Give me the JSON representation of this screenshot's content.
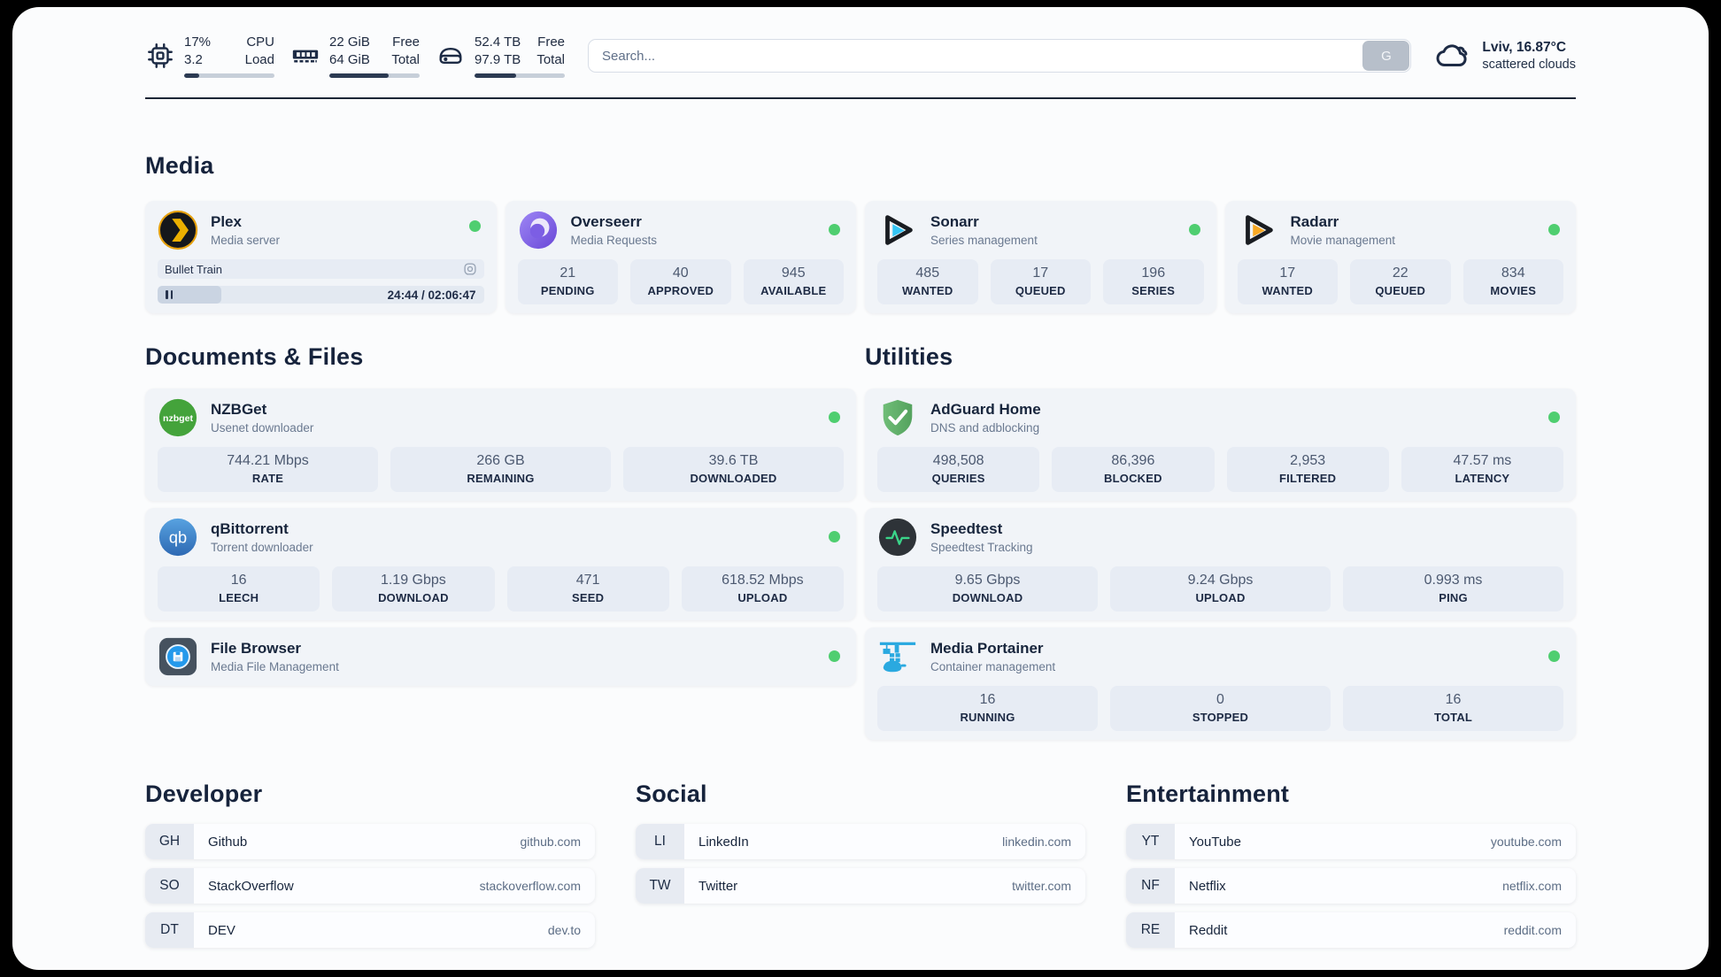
{
  "header": {
    "system": [
      {
        "name": "cpu",
        "value_top": "17%",
        "value_bottom": "3.2",
        "label_top": "CPU",
        "label_bottom": "Load",
        "progress_pct": 17
      },
      {
        "name": "memory",
        "value_top": "22 GiB",
        "value_bottom": "64 GiB",
        "label_top": "Free",
        "label_bottom": "Total",
        "progress_pct": 66
      },
      {
        "name": "disk",
        "value_top": "52.4 TB",
        "value_bottom": "97.9 TB",
        "label_top": "Free",
        "label_bottom": "Total",
        "progress_pct": 46
      }
    ],
    "search": {
      "placeholder": "Search...",
      "button_label": "G"
    },
    "weather": {
      "location_temp": "Lviv, 16.87°C",
      "condition": "scattered clouds"
    }
  },
  "sections": {
    "media": "Media",
    "documents": "Documents & Files",
    "utilities": "Utilities",
    "developer": "Developer",
    "social": "Social",
    "entertainment": "Entertainment"
  },
  "media": {
    "plex": {
      "name": "Plex",
      "description": "Media server",
      "status": "online",
      "now_playing": "Bullet Train",
      "time": "24:44 / 02:06:47",
      "progress_pct": 19.5
    },
    "overseerr": {
      "name": "Overseerr",
      "description": "Media Requests",
      "status": "online",
      "stats": [
        {
          "value": "21",
          "label": "PENDING"
        },
        {
          "value": "40",
          "label": "APPROVED"
        },
        {
          "value": "945",
          "label": "AVAILABLE"
        }
      ]
    },
    "sonarr": {
      "name": "Sonarr",
      "description": "Series management",
      "status": "online",
      "stats": [
        {
          "value": "485",
          "label": "WANTED"
        },
        {
          "value": "17",
          "label": "QUEUED"
        },
        {
          "value": "196",
          "label": "SERIES"
        }
      ]
    },
    "radarr": {
      "name": "Radarr",
      "description": "Movie management",
      "status": "online",
      "stats": [
        {
          "value": "17",
          "label": "WANTED"
        },
        {
          "value": "22",
          "label": "QUEUED"
        },
        {
          "value": "834",
          "label": "MOVIES"
        }
      ]
    }
  },
  "documents": {
    "nzbget": {
      "name": "NZBGet",
      "description": "Usenet downloader",
      "status": "online",
      "stats": [
        {
          "value": "744.21 Mbps",
          "label": "RATE"
        },
        {
          "value": "266 GB",
          "label": "REMAINING"
        },
        {
          "value": "39.6 TB",
          "label": "DOWNLOADED"
        }
      ]
    },
    "qbittorrent": {
      "name": "qBittorrent",
      "description": "Torrent downloader",
      "status": "online",
      "stats": [
        {
          "value": "16",
          "label": "LEECH"
        },
        {
          "value": "1.19 Gbps",
          "label": "DOWNLOAD"
        },
        {
          "value": "471",
          "label": "SEED"
        },
        {
          "value": "618.52 Mbps",
          "label": "UPLOAD"
        }
      ]
    },
    "filebrowser": {
      "name": "File Browser",
      "description": "Media File Management",
      "status": "online"
    }
  },
  "utilities": {
    "adguard": {
      "name": "AdGuard Home",
      "description": "DNS and adblocking",
      "status": "online",
      "stats": [
        {
          "value": "498,508",
          "label": "QUERIES"
        },
        {
          "value": "86,396",
          "label": "BLOCKED"
        },
        {
          "value": "2,953",
          "label": "FILTERED"
        },
        {
          "value": "47.57 ms",
          "label": "LATENCY"
        }
      ]
    },
    "speedtest": {
      "name": "Speedtest",
      "description": "Speedtest Tracking",
      "stats": [
        {
          "value": "9.65 Gbps",
          "label": "DOWNLOAD"
        },
        {
          "value": "9.24 Gbps",
          "label": "UPLOAD"
        },
        {
          "value": "0.993 ms",
          "label": "PING"
        }
      ]
    },
    "portainer": {
      "name": "Media Portainer",
      "description": "Container management",
      "status": "online",
      "stats": [
        {
          "value": "16",
          "label": "RUNNING"
        },
        {
          "value": "0",
          "label": "STOPPED"
        },
        {
          "value": "16",
          "label": "TOTAL"
        }
      ]
    }
  },
  "bookmarks": {
    "developer": [
      {
        "abbr": "GH",
        "name": "Github",
        "url": "github.com"
      },
      {
        "abbr": "SO",
        "name": "StackOverflow",
        "url": "stackoverflow.com"
      },
      {
        "abbr": "DT",
        "name": "DEV",
        "url": "dev.to"
      }
    ],
    "social": [
      {
        "abbr": "LI",
        "name": "LinkedIn",
        "url": "linkedin.com"
      },
      {
        "abbr": "TW",
        "name": "Twitter",
        "url": "twitter.com"
      }
    ],
    "entertainment": [
      {
        "abbr": "YT",
        "name": "YouTube",
        "url": "youtube.com"
      },
      {
        "abbr": "NF",
        "name": "Netflix",
        "url": "netflix.com"
      },
      {
        "abbr": "RE",
        "name": "Reddit",
        "url": "reddit.com"
      }
    ]
  },
  "colors": {
    "status_online": "#4fce70",
    "plex_accent": "#e5a00d",
    "sonarr_accent": "#35c5f4",
    "radarr_accent": "#f7a823",
    "portainer_accent": "#2aa9e0",
    "adguard_accent": "#5fae66",
    "divider": "#1c2636"
  }
}
